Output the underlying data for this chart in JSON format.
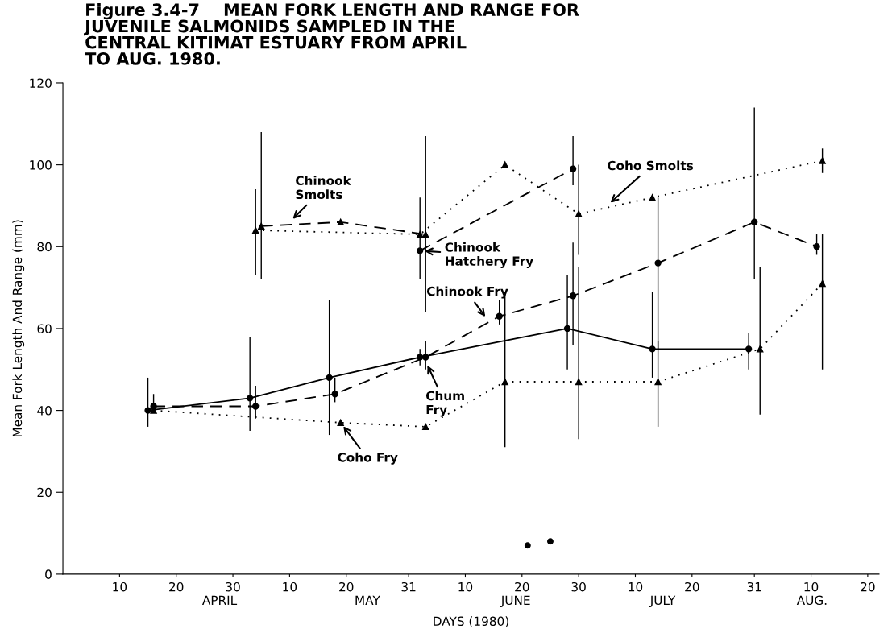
{
  "chart_data": {
    "type": "line",
    "title": "Figure 3.4-7    MEAN FORK LENGTH AND RANGE FOR\nJUVENILE SALMONIDS SAMPLED IN THE\nCENTRAL KITIMAT ESTUARY FROM APRIL\nTO AUG. 1980.",
    "xlabel": "DAYS (1980)",
    "ylabel": "Mean Fork Length And Range (mm)",
    "xlim": [
      "1980-03-31",
      "1980-08-22"
    ],
    "ylim": [
      0,
      120
    ],
    "xticks": [
      {
        "value": "1980-04-10",
        "label": "10"
      },
      {
        "value": "1980-04-20",
        "label": "20"
      },
      {
        "value": "1980-04-30",
        "label": "30"
      },
      {
        "value": "1980-05-10",
        "label": "10"
      },
      {
        "value": "1980-05-20",
        "label": "20"
      },
      {
        "value": "1980-05-31",
        "label": "31"
      },
      {
        "value": "1980-06-10",
        "label": "10"
      },
      {
        "value": "1980-06-20",
        "label": "20"
      },
      {
        "value": "1980-06-30",
        "label": "30"
      },
      {
        "value": "1980-07-10",
        "label": "10"
      },
      {
        "value": "1980-07-20",
        "label": "20"
      },
      {
        "value": "1980-07-31",
        "label": "31"
      },
      {
        "value": "1980-08-10",
        "label": "10"
      },
      {
        "value": "1980-08-20",
        "label": "20"
      }
    ],
    "yticks": [
      0,
      20,
      40,
      60,
      80,
      100,
      120
    ],
    "grid": false,
    "series": [
      {
        "color": "#000000",
        "marker": "circle",
        "line_style": "solid",
        "x": [
          "1980-04-15",
          "1980-05-03",
          "1980-05-17",
          "1980-06-02",
          "1980-06-28",
          "1980-07-13",
          "1980-07-30"
        ],
        "values": [
          40,
          43,
          48,
          53,
          60,
          55,
          55
        ],
        "errors": [
          [
            36,
            48
          ],
          [
            35,
            58
          ],
          [
            34,
            67
          ],
          [
            51,
            55
          ],
          [
            50,
            73
          ],
          [
            48,
            69
          ],
          [
            50,
            59
          ]
        ]
      },
      {
        "color": "#000000",
        "marker": "circle",
        "line_style": "dashed",
        "x": [
          "1980-04-16",
          "1980-05-04",
          "1980-05-18",
          "1980-06-03",
          "1980-06-16",
          "1980-06-29",
          "1980-07-14",
          "1980-07-31",
          "1980-08-11"
        ],
        "values": [
          41,
          41,
          44,
          53,
          63,
          68,
          76,
          86,
          80
        ],
        "errors": [
          [
            40,
            44
          ],
          [
            38,
            46
          ],
          [
            42,
            48
          ],
          [
            50,
            57
          ],
          [
            61,
            67
          ],
          [
            56,
            81
          ],
          [
            55,
            92
          ],
          [
            72,
            114
          ],
          [
            78,
            83
          ]
        ]
      },
      {
        "color": "#000000",
        "marker": "circle",
        "line_style": "dashed",
        "x": [
          "1980-06-02",
          "1980-06-29"
        ],
        "values": [
          79,
          99
        ],
        "errors": [
          [
            72,
            92
          ],
          [
            95,
            107
          ]
        ]
      },
      {
        "color": "#000000",
        "marker": "triangle",
        "line_style": "dashed",
        "x": [
          "1980-05-05",
          "1980-05-19",
          "1980-06-03"
        ],
        "values": [
          85,
          86,
          83
        ],
        "errors": [
          [
            72,
            108
          ],
          [
            null,
            null
          ],
          [
            64,
            107
          ]
        ]
      },
      {
        "color": "#000000",
        "marker": "triangle",
        "line_style": "dotted",
        "x": [
          "1980-04-16",
          "1980-05-19",
          "1980-06-03",
          "1980-06-17",
          "1980-06-30",
          "1980-07-14",
          "1980-08-01",
          "1980-08-12"
        ],
        "values": [
          40,
          37,
          36,
          47,
          47,
          47,
          55,
          71
        ],
        "errors": [
          null,
          null,
          null,
          [
            31,
            69
          ],
          [
            33,
            75
          ],
          [
            36,
            57
          ],
          [
            39,
            75
          ],
          [
            50,
            83
          ]
        ]
      },
      {
        "color": "#000000",
        "marker": "triangle",
        "line_style": "dotted",
        "x": [
          "1980-05-04",
          "1980-06-02",
          "1980-06-17",
          "1980-06-30",
          "1980-07-13",
          "1980-08-12"
        ],
        "values": [
          84,
          83,
          100,
          88,
          92,
          101
        ],
        "errors": [
          [
            73,
            94
          ],
          null,
          null,
          [
            78,
            100
          ],
          null,
          [
            98,
            104
          ]
        ]
      },
      {
        "type": "scatter",
        "color": "#000000",
        "marker": "circle",
        "x": [
          "1980-06-21",
          "1980-06-25"
        ],
        "values": [
          7,
          8
        ]
      }
    ],
    "annotations": [
      {
        "text": "Chinook\nSmolts",
        "x": "1980-05-10",
        "y": 86
      },
      {
        "text": "Chinook\nHatchery Fry",
        "x": "1980-06-02",
        "y": 79
      },
      {
        "text": "Chinook Fry",
        "x": "1980-06-14",
        "y": 62
      },
      {
        "text": "Chum\nFry",
        "x": "1980-06-03",
        "y": 52
      },
      {
        "text": "Coho Fry",
        "x": "1980-05-19",
        "y": 37
      },
      {
        "text": "Coho Smolts",
        "x": "1980-07-05",
        "y": 90
      },
      "APRIL",
      "MAY",
      "JUNE",
      "JULY",
      "AUG."
    ]
  }
}
